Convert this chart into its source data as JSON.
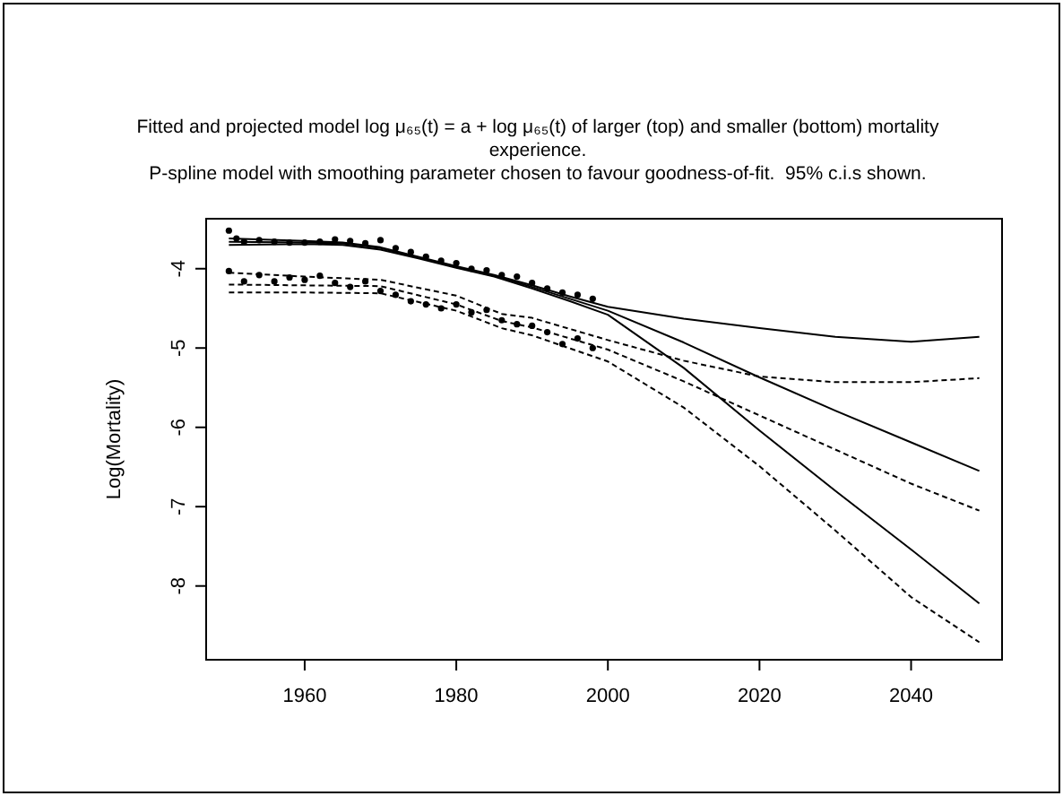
{
  "chart_data": {
    "type": "line",
    "title": "Fitted and projected model log μ₆₅(t) = a + log μ₆₅(t) of larger (top) and smaller (bottom) mortality experience.",
    "subtitle": "P-spline model with smoothing parameter chosen to favour goodness-of-fit.  95% c.i.s shown.",
    "ylabel": "Log(Mortality)",
    "xlim": [
      1947,
      2052
    ],
    "xticks": [
      1960,
      1980,
      2000,
      2020,
      2040
    ],
    "ylim": [
      -8.93,
      -3.37
    ],
    "yticks": [
      -8,
      -7,
      -6,
      -5,
      -4
    ],
    "grid": false,
    "series": [
      {
        "color": "#000000",
        "line_style": "solid",
        "x": [
          1950,
          1960,
          1965,
          1970,
          1975,
          1980,
          1985,
          1990,
          1995,
          2000,
          2010,
          2020,
          2030,
          2040,
          2049
        ],
        "values": [
          -3.66,
          -3.67,
          -3.68,
          -3.74,
          -3.86,
          -3.98,
          -4.09,
          -4.23,
          -4.38,
          -4.53,
          -4.93,
          -5.37,
          -5.79,
          -6.19,
          -6.55
        ]
      },
      {
        "color": "#000000",
        "line_style": "solid",
        "x": [
          1950,
          1960,
          1965,
          1970,
          1975,
          1980,
          1985,
          1990,
          1995,
          2000,
          2010,
          2020,
          2030,
          2040,
          2049
        ],
        "values": [
          -3.62,
          -3.65,
          -3.67,
          -3.73,
          -3.85,
          -3.97,
          -4.08,
          -4.21,
          -4.35,
          -4.48,
          -4.63,
          -4.75,
          -4.86,
          -4.92,
          -4.86
        ]
      },
      {
        "color": "#000000",
        "line_style": "solid",
        "x": [
          1950,
          1960,
          1965,
          1970,
          1975,
          1980,
          1985,
          1990,
          1995,
          2000,
          2010,
          2020,
          2030,
          2040,
          2049
        ],
        "values": [
          -3.7,
          -3.69,
          -3.7,
          -3.76,
          -3.87,
          -3.99,
          -4.1,
          -4.25,
          -4.41,
          -4.58,
          -5.25,
          -6.04,
          -6.8,
          -7.54,
          -8.22
        ]
      },
      {
        "color": "#000000",
        "line_style": "dashed",
        "x": [
          1950,
          1960,
          1970,
          1980,
          1986,
          1990,
          2000,
          2010,
          2020,
          2030,
          2040,
          2049
        ],
        "values": [
          -4.2,
          -4.21,
          -4.22,
          -4.45,
          -4.66,
          -4.74,
          -5.02,
          -5.42,
          -5.85,
          -6.28,
          -6.71,
          -7.05
        ]
      },
      {
        "color": "#000000",
        "line_style": "dashed",
        "x": [
          1950,
          1960,
          1970,
          1980,
          1986,
          1990,
          2000,
          2010,
          2020,
          2030,
          2040,
          2049
        ],
        "values": [
          -4.05,
          -4.1,
          -4.14,
          -4.34,
          -4.57,
          -4.62,
          -4.9,
          -5.16,
          -5.36,
          -5.43,
          -5.43,
          -5.38
        ]
      },
      {
        "color": "#000000",
        "line_style": "dashed",
        "x": [
          1950,
          1960,
          1970,
          1980,
          1986,
          1990,
          2000,
          2010,
          2020,
          2030,
          2040,
          2049
        ],
        "values": [
          -4.3,
          -4.3,
          -4.31,
          -4.53,
          -4.75,
          -4.84,
          -5.17,
          -5.75,
          -6.49,
          -7.3,
          -8.14,
          -8.71
        ]
      },
      {
        "type": "scatter",
        "color": "#000000",
        "marker": "circle",
        "x": [
          1950,
          1951,
          1952,
          1954,
          1956,
          1958,
          1960,
          1962,
          1964,
          1966,
          1968,
          1970,
          1972,
          1974,
          1976,
          1978,
          1980,
          1982,
          1984,
          1986,
          1988,
          1990,
          1992,
          1994,
          1996,
          1998
        ],
        "values": [
          -3.52,
          -3.62,
          -3.66,
          -3.64,
          -3.66,
          -3.67,
          -3.67,
          -3.66,
          -3.63,
          -3.65,
          -3.68,
          -3.64,
          -3.74,
          -3.79,
          -3.85,
          -3.9,
          -3.93,
          -4.0,
          -4.02,
          -4.08,
          -4.1,
          -4.18,
          -4.25,
          -4.3,
          -4.33,
          -4.38
        ]
      },
      {
        "type": "scatter",
        "color": "#000000",
        "marker": "circle",
        "x": [
          1950,
          1952,
          1954,
          1956,
          1958,
          1960,
          1962,
          1964,
          1966,
          1968,
          1970,
          1972,
          1974,
          1976,
          1978,
          1980,
          1982,
          1984,
          1986,
          1988,
          1990,
          1992,
          1994,
          1996,
          1998
        ],
        "values": [
          -4.03,
          -4.16,
          -4.08,
          -4.16,
          -4.11,
          -4.14,
          -4.09,
          -4.18,
          -4.23,
          -4.16,
          -4.28,
          -4.33,
          -4.41,
          -4.45,
          -4.5,
          -4.45,
          -4.55,
          -4.52,
          -4.65,
          -4.7,
          -4.72,
          -4.8,
          -4.95,
          -4.88,
          -5.0
        ]
      }
    ]
  }
}
